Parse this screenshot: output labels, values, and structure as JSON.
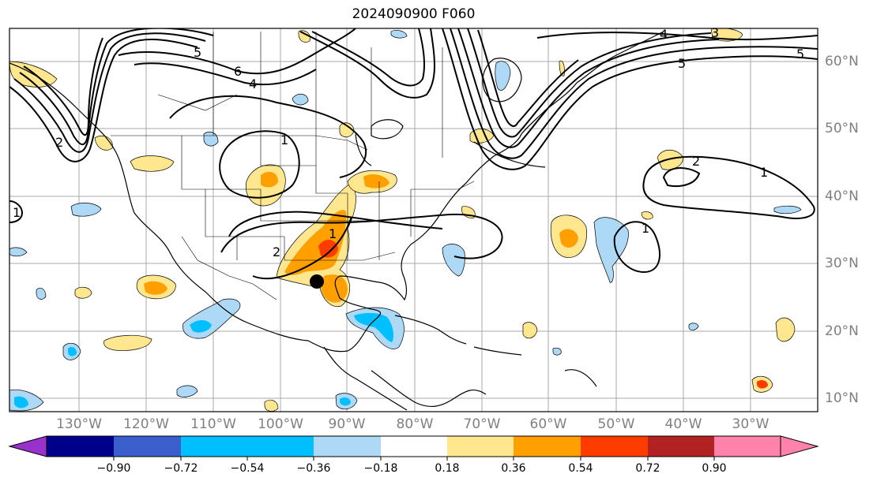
{
  "title": "2024090900 F060",
  "map": {
    "lon_labels": [
      "130°W",
      "120°W",
      "110°W",
      "100°W",
      "90°W",
      "80°W",
      "70°W",
      "60°W",
      "50°W",
      "40°W",
      "30°W"
    ],
    "lat_labels": [
      "60°N",
      "50°N",
      "40°N",
      "30°N",
      "20°N",
      "10°N"
    ],
    "contour_labels": [
      "5",
      "6",
      "4",
      "1",
      "1",
      "2",
      "2",
      "1",
      "4",
      "5",
      "3",
      "5",
      "1",
      "1",
      "2"
    ],
    "marker": "storm-center-dot"
  },
  "colorbar": {
    "tick_labels": [
      "−0.90",
      "−0.72",
      "−0.54",
      "−0.36",
      "−0.18",
      "0.18",
      "0.36",
      "0.54",
      "0.72",
      "0.90"
    ],
    "colors": [
      "#9932cc",
      "#00008b",
      "#3a5fcd",
      "#00bfff",
      "#add8f6",
      "#ffffff",
      "#ffe78f",
      "#ff9f00",
      "#ff3c00",
      "#b22222",
      "#ff82ab"
    ]
  }
}
